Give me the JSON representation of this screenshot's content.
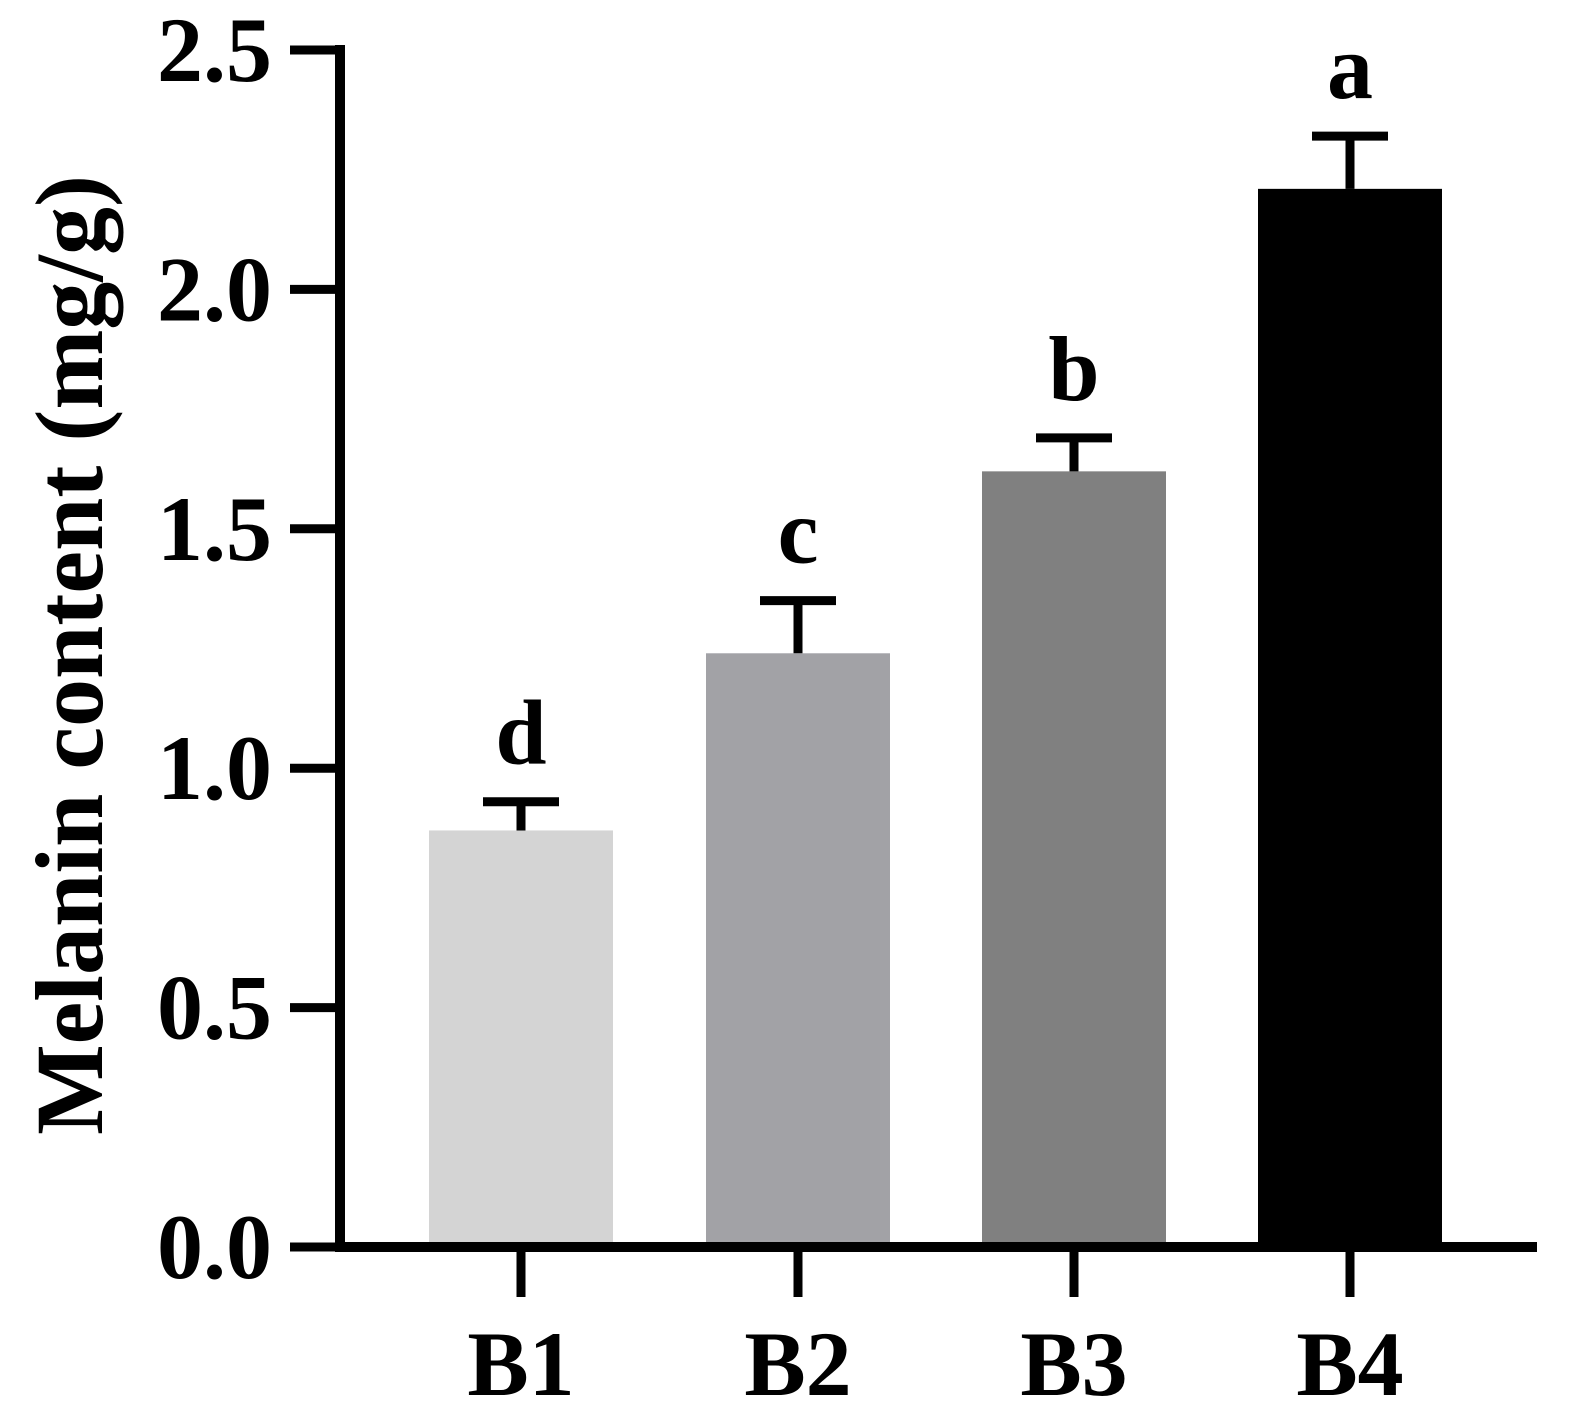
{
  "chart_data": {
    "type": "bar",
    "categories": [
      "B1",
      "B2",
      "B3",
      "B4"
    ],
    "values": [
      0.87,
      1.24,
      1.62,
      2.21
    ],
    "errors": [
      0.06,
      0.11,
      0.07,
      0.11
    ],
    "significance": [
      "d",
      "c",
      "b",
      "a"
    ],
    "colors": [
      "#d4d4d4",
      "#a2a2a6",
      "#808080",
      "#000000"
    ],
    "title": "",
    "xlabel": "",
    "ylabel": "Melanin content (mg/g)",
    "ylim": [
      0,
      2.5
    ],
    "yticks": [
      "0.0",
      "0.5",
      "1.0",
      "1.5",
      "2.0",
      "2.5"
    ],
    "grid": false,
    "legend": "none"
  }
}
